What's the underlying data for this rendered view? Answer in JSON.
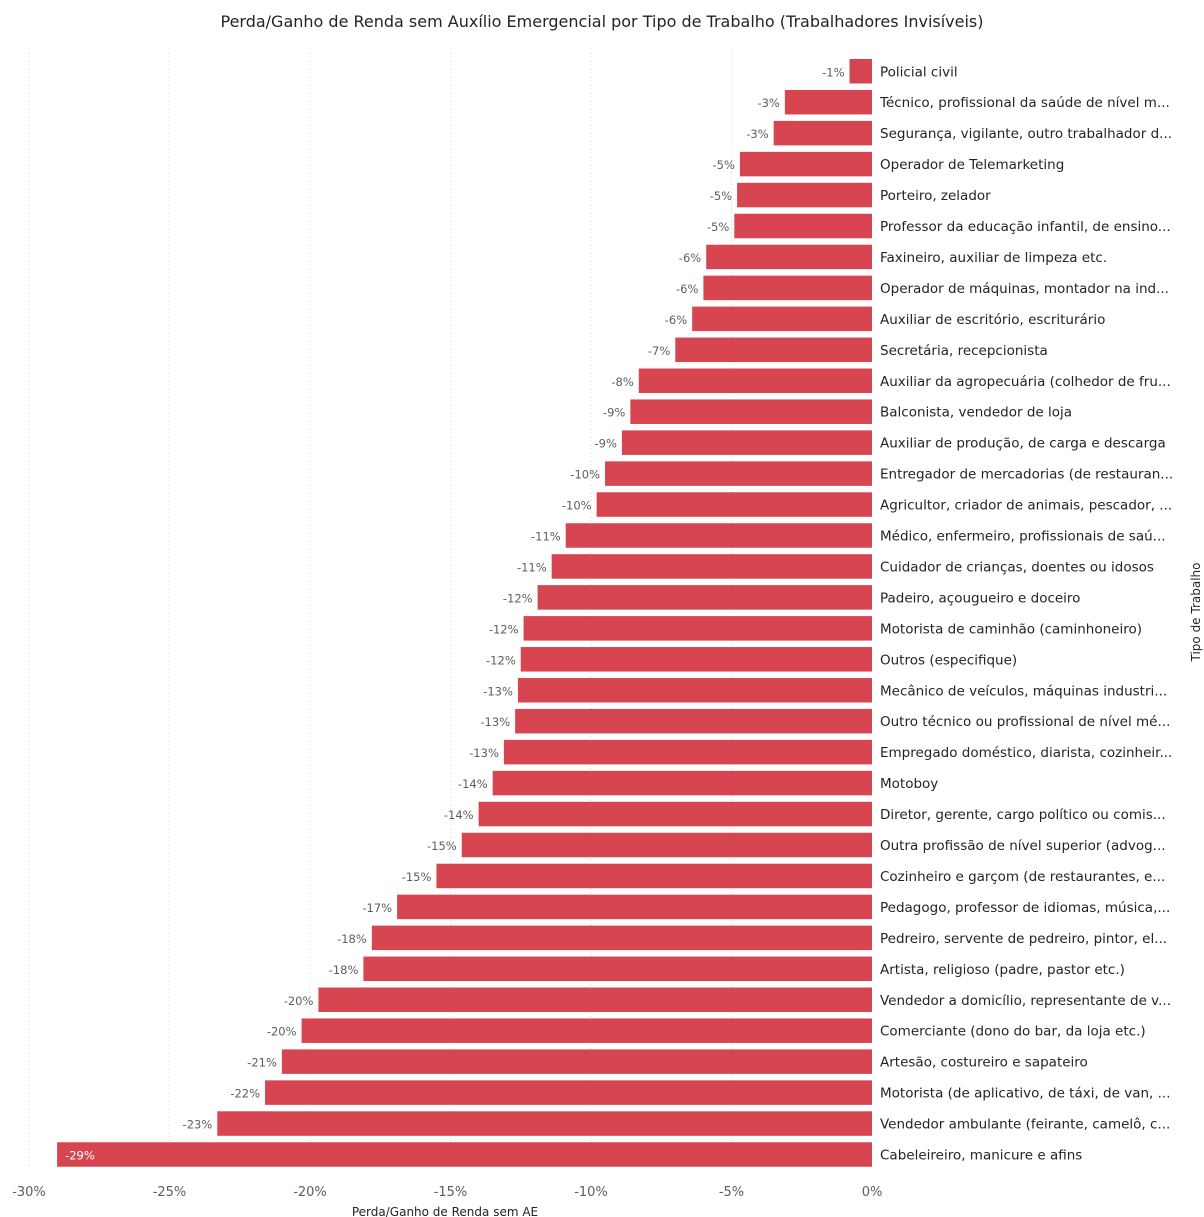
{
  "chart_data": {
    "type": "bar",
    "orientation": "horizontal",
    "title": "Perda/Ganho de Renda sem Auxílio Emergencial por Tipo de Trabalho (Trabalhadores Invisíveis)",
    "xlabel": "Perda/Ganho de Renda sem AE",
    "ylabel": "Tipo de Trabalho",
    "xlim": [
      -30,
      0
    ],
    "x_ticks": [
      "-30%",
      "-25%",
      "-20%",
      "-15%",
      "-10%",
      "-5%",
      "0%"
    ],
    "grid": "vertical dotted",
    "bar_color": "#D64550",
    "categories": [
      "Policial civil",
      "Técnico, profissional da saúde de nível m...",
      "Segurança, vigilante, outro trabalhador d...",
      "Operador de Telemarketing",
      "Porteiro, zelador",
      "Professor da educação infantil, de ensino...",
      "Faxineiro, auxiliar de limpeza etc.",
      "Operador de máquinas, montador na ind...",
      "Auxiliar de escritório, escriturário",
      "Secretária, recepcionista",
      "Auxiliar da agropecuária (colhedor de fru...",
      "Balconista, vendedor de loja",
      "Auxiliar de produção, de carga e descarga",
      "Entregador de mercadorias (de restauran...",
      "Agricultor, criador de animais, pescador, ...",
      "Médico, enfermeiro, profissionais de saú...",
      "Cuidador de crianças, doentes ou idosos",
      "Padeiro, açougueiro e doceiro",
      "Motorista de caminhão (caminhoneiro)",
      "Outros (especifique)",
      "Mecânico de veículos, máquinas industri...",
      "Outro técnico ou profissional de nível mé...",
      "Empregado doméstico, diarista, cozinheir...",
      "Motoboy",
      "Diretor, gerente, cargo político ou comis...",
      "Outra profissão de nível superior (advog...",
      "Cozinheiro e garçom (de restaurantes, e...",
      "Pedagogo, professor de idiomas, música,...",
      "Pedreiro, servente de pedreiro, pintor, el...",
      "Artista, religioso (padre, pastor etc.)",
      "Vendedor a domicílio, representante de v...",
      "Comerciante (dono do bar, da loja etc.)",
      "Artesão, costureiro e sapateiro",
      "Motorista (de aplicativo, de táxi, de van, ...",
      "Vendedor ambulante (feirante, camelô, c...",
      "Cabeleireiro, manicure e afins"
    ],
    "values": [
      -0.8,
      -3.1,
      -3.5,
      -4.7,
      -4.8,
      -4.9,
      -5.9,
      -6.0,
      -6.4,
      -7.0,
      -8.3,
      -8.6,
      -8.9,
      -9.5,
      -9.8,
      -10.9,
      -11.4,
      -11.9,
      -12.4,
      -12.5,
      -12.6,
      -12.7,
      -13.1,
      -13.5,
      -14.0,
      -14.6,
      -15.5,
      -16.9,
      -17.8,
      -18.1,
      -19.7,
      -20.3,
      -21.0,
      -21.6,
      -23.3,
      -29.0
    ],
    "value_labels": [
      "-1%",
      "-3%",
      "-3%",
      "-5%",
      "-5%",
      "-5%",
      "-6%",
      "-6%",
      "-6%",
      "-7%",
      "-8%",
      "-9%",
      "-9%",
      "-10%",
      "-10%",
      "-11%",
      "-11%",
      "-12%",
      "-12%",
      "-12%",
      "-13%",
      "-13%",
      "-13%",
      "-14%",
      "-14%",
      "-15%",
      "-15%",
      "-17%",
      "-18%",
      "-18%",
      "-20%",
      "-20%",
      "-21%",
      "-22%",
      "-23%",
      "-29%"
    ]
  }
}
